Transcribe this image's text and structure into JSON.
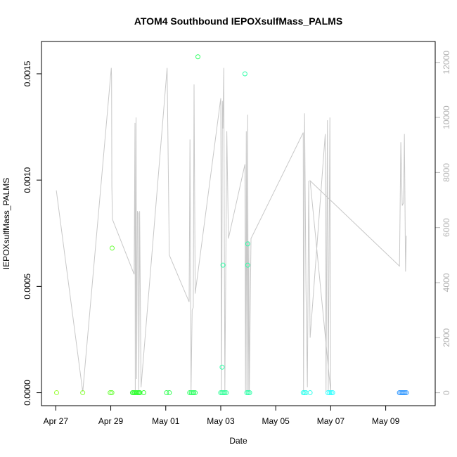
{
  "chart_data": {
    "type": "scatter",
    "title": "ATOM4 Southbound IEPOXsulfMass_PALMS",
    "xlabel": "Date",
    "ylabel": "IEPOXsulfMass_PALMS",
    "x_unit": "days since Apr 27",
    "xlim": [
      -0.52,
      13.8
    ],
    "ylim": [
      -6.1e-05,
      0.001652
    ],
    "x_ticks": [
      {
        "value": 0,
        "label": "Apr 27"
      },
      {
        "value": 2,
        "label": "Apr 29"
      },
      {
        "value": 4,
        "label": "May 01"
      },
      {
        "value": 6,
        "label": "May 03"
      },
      {
        "value": 8,
        "label": "May 05"
      },
      {
        "value": 10,
        "label": "May 07"
      },
      {
        "value": 12,
        "label": "May 09"
      }
    ],
    "y_ticks": [
      {
        "value": 0,
        "label": "0.0000"
      },
      {
        "value": 0.0005,
        "label": "0.0005"
      },
      {
        "value": 0.001,
        "label": "0.0010"
      },
      {
        "value": 0.0015,
        "label": "0.0015"
      }
    ],
    "y2_ticks": [
      {
        "value": 0,
        "label": "0"
      },
      {
        "value": 2000,
        "label": "2000"
      },
      {
        "value": 4000,
        "label": "4000"
      },
      {
        "value": 6000,
        "label": "6000"
      },
      {
        "value": 8000,
        "label": "8000"
      },
      {
        "value": 10000,
        "label": "10000"
      },
      {
        "value": 12000,
        "label": "12000"
      }
    ],
    "y2lim": [
      -470,
      12760
    ],
    "grid": false,
    "point_series": [
      {
        "x": 0.03,
        "y": 0,
        "color": "#99ff33"
      },
      {
        "x": 0.98,
        "y": 0,
        "color": "#88ff33"
      },
      {
        "x": 1.98,
        "y": 0,
        "color": "#66ff33"
      },
      {
        "x": 2.04,
        "y": 0,
        "color": "#66ff33"
      },
      {
        "x": 2.05,
        "y": 0.00068,
        "color": "#66ff33"
      },
      {
        "x": 2.79,
        "y": 0,
        "color": "#33ff33"
      },
      {
        "x": 2.83,
        "y": 0,
        "color": "#33ff33"
      },
      {
        "x": 2.87,
        "y": 0,
        "color": "#33ff33"
      },
      {
        "x": 2.91,
        "y": 0,
        "color": "#33ff33"
      },
      {
        "x": 2.95,
        "y": 0,
        "color": "#33ff33"
      },
      {
        "x": 2.99,
        "y": 0,
        "color": "#33ff33"
      },
      {
        "x": 3.03,
        "y": 0,
        "color": "#33ff33"
      },
      {
        "x": 3.06,
        "y": 0,
        "color": "#33ff33"
      },
      {
        "x": 3.2,
        "y": 0,
        "color": "#33ff33"
      },
      {
        "x": 4.03,
        "y": 0,
        "color": "#33ff55"
      },
      {
        "x": 4.13,
        "y": 0,
        "color": "#33ff55"
      },
      {
        "x": 4.87,
        "y": 0,
        "color": "#33ff66"
      },
      {
        "x": 4.93,
        "y": 0,
        "color": "#33ff66"
      },
      {
        "x": 4.98,
        "y": 0,
        "color": "#33ff66"
      },
      {
        "x": 5.02,
        "y": 0,
        "color": "#33ff66"
      },
      {
        "x": 5.07,
        "y": 0,
        "color": "#33ff66"
      },
      {
        "x": 5.17,
        "y": 0.00158,
        "color": "#33ff66"
      },
      {
        "x": 6.0,
        "y": 0,
        "color": "#33ff99"
      },
      {
        "x": 6.05,
        "y": 0,
        "color": "#33ff99"
      },
      {
        "x": 6.1,
        "y": 0,
        "color": "#33ff99"
      },
      {
        "x": 6.15,
        "y": 0,
        "color": "#33ff99"
      },
      {
        "x": 6.2,
        "y": 0,
        "color": "#33ff99"
      },
      {
        "x": 6.05,
        "y": 0.00012,
        "color": "#33ffaa"
      },
      {
        "x": 6.08,
        "y": 0.0006,
        "color": "#33ffaa"
      },
      {
        "x": 6.88,
        "y": 0.0015,
        "color": "#33ffaa"
      },
      {
        "x": 6.95,
        "y": 0,
        "color": "#33ffaa"
      },
      {
        "x": 7.0,
        "y": 0,
        "color": "#33ffaa"
      },
      {
        "x": 7.05,
        "y": 0,
        "color": "#33ffaa"
      },
      {
        "x": 6.98,
        "y": 0.0007,
        "color": "#33ffaa"
      },
      {
        "x": 6.98,
        "y": 0.0006,
        "color": "#33ffaa"
      },
      {
        "x": 9.0,
        "y": 0,
        "color": "#33ffee"
      },
      {
        "x": 9.05,
        "y": 0,
        "color": "#33ffee"
      },
      {
        "x": 9.1,
        "y": 0,
        "color": "#33ffee"
      },
      {
        "x": 9.25,
        "y": 0,
        "color": "#33ffee"
      },
      {
        "x": 9.9,
        "y": 0,
        "color": "#33ffff"
      },
      {
        "x": 9.96,
        "y": 0,
        "color": "#33ffff"
      },
      {
        "x": 10.02,
        "y": 0,
        "color": "#33ffff"
      },
      {
        "x": 10.07,
        "y": 0,
        "color": "#33ffff"
      },
      {
        "x": 12.5,
        "y": 0,
        "color": "#3399ff"
      },
      {
        "x": 12.55,
        "y": 0,
        "color": "#3399ff"
      },
      {
        "x": 12.6,
        "y": 0,
        "color": "#3399ff"
      },
      {
        "x": 12.65,
        "y": 0,
        "color": "#3399ff"
      },
      {
        "x": 12.7,
        "y": 0,
        "color": "#3399ff"
      },
      {
        "x": 12.75,
        "y": 0,
        "color": "#3399ff"
      }
    ],
    "line_series": {
      "color": "#c8c8c8",
      "axis": "right",
      "points": [
        [
          0.02,
          7350
        ],
        [
          0.98,
          30
        ],
        [
          2.02,
          11800
        ],
        [
          2.03,
          11500
        ],
        [
          2.04,
          7500
        ],
        [
          2.06,
          6300
        ],
        [
          2.85,
          4300
        ],
        [
          2.88,
          9800
        ],
        [
          2.89,
          30
        ],
        [
          2.92,
          10000
        ],
        [
          2.94,
          500
        ],
        [
          2.97,
          6600
        ],
        [
          3.0,
          6500
        ],
        [
          3.02,
          100
        ],
        [
          3.05,
          6600
        ],
        [
          3.1,
          200
        ],
        [
          4.05,
          11800
        ],
        [
          4.13,
          5000
        ],
        [
          4.85,
          3300
        ],
        [
          4.88,
          9200
        ],
        [
          4.92,
          30
        ],
        [
          4.96,
          3000
        ],
        [
          5.0,
          3100
        ],
        [
          5.03,
          11200
        ],
        [
          5.07,
          3600
        ],
        [
          6.0,
          10700
        ],
        [
          6.03,
          30
        ],
        [
          6.06,
          10600
        ],
        [
          6.08,
          9600
        ],
        [
          6.11,
          11800
        ],
        [
          6.15,
          30
        ],
        [
          6.22,
          9500
        ],
        [
          6.28,
          5600
        ],
        [
          6.88,
          8300
        ],
        [
          6.9,
          30
        ],
        [
          6.93,
          9500
        ],
        [
          6.95,
          30
        ],
        [
          6.98,
          10100
        ],
        [
          7.0,
          30
        ],
        [
          7.02,
          5500
        ],
        [
          7.04,
          30
        ],
        [
          7.1,
          5600
        ],
        [
          9.0,
          9450
        ],
        [
          9.01,
          30
        ],
        [
          9.05,
          10150
        ],
        [
          9.1,
          3800
        ],
        [
          9.15,
          200
        ],
        [
          9.2,
          7700
        ],
        [
          9.25,
          2000
        ],
        [
          9.8,
          9400
        ],
        [
          9.83,
          30
        ],
        [
          9.88,
          9900
        ],
        [
          9.91,
          30
        ],
        [
          9.97,
          10000
        ],
        [
          10.0,
          30
        ],
        [
          9.25,
          7700
        ],
        [
          12.5,
          4600
        ],
        [
          12.55,
          9100
        ],
        [
          12.6,
          6800
        ],
        [
          12.65,
          6900
        ],
        [
          12.68,
          9400
        ],
        [
          12.72,
          4400
        ],
        [
          12.75,
          5700
        ]
      ]
    }
  }
}
